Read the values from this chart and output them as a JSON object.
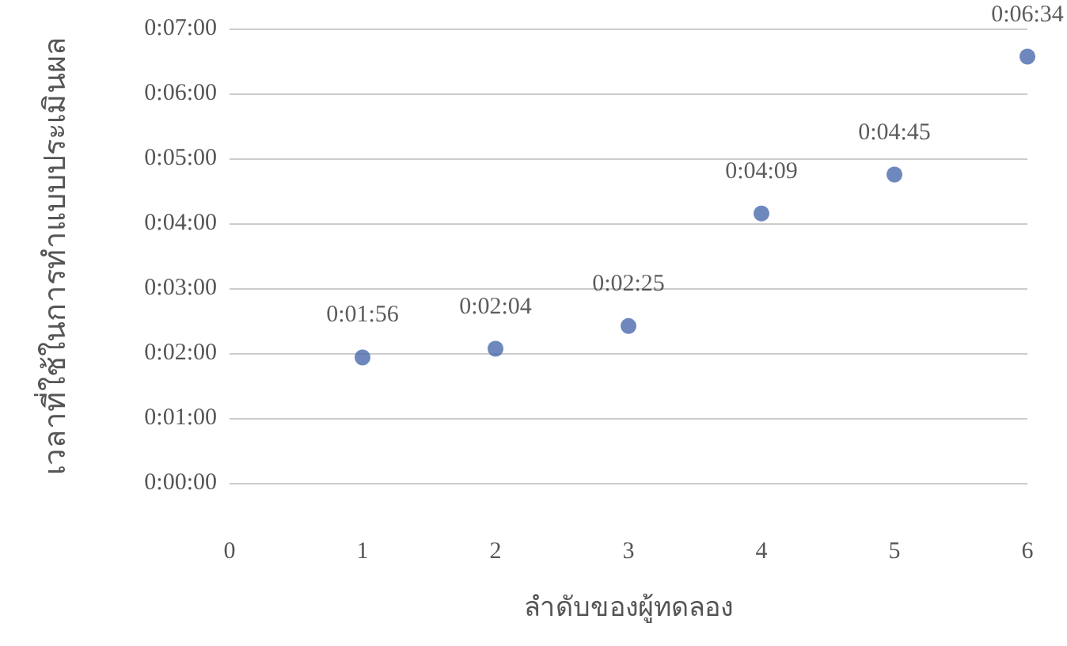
{
  "chart_data": {
    "type": "scatter",
    "xlabel": "ลำดับของผู้ทดลอง",
    "ylabel": "เวลาที่ใช้ในการทำแบบประเมินผล",
    "x": [
      1,
      2,
      3,
      4,
      5,
      6
    ],
    "series": [
      {
        "color": "#4a6aad",
        "values": [
          116,
          124,
          145,
          249,
          285,
          394
        ],
        "value_labels": [
          "0:01:56",
          "0:02:04",
          "0:02:25",
          "0:04:09",
          "0:04:45",
          "0:06:34"
        ]
      }
    ],
    "xlim": [
      0,
      6
    ],
    "xticks": [
      0,
      1,
      2,
      3,
      4,
      5,
      6
    ],
    "ylim": [
      0,
      420
    ],
    "yticks": [
      {
        "value": 0,
        "label": "0:00:00"
      },
      {
        "value": 60,
        "label": "0:01:00"
      },
      {
        "value": 120,
        "label": "0:02:00"
      },
      {
        "value": 180,
        "label": "0:03:00"
      },
      {
        "value": 240,
        "label": "0:04:00"
      },
      {
        "value": 300,
        "label": "0:05:00"
      },
      {
        "value": 360,
        "label": "0:06:00"
      },
      {
        "value": 420,
        "label": "0:07:00"
      }
    ],
    "grid": "y",
    "marker": "circle"
  }
}
